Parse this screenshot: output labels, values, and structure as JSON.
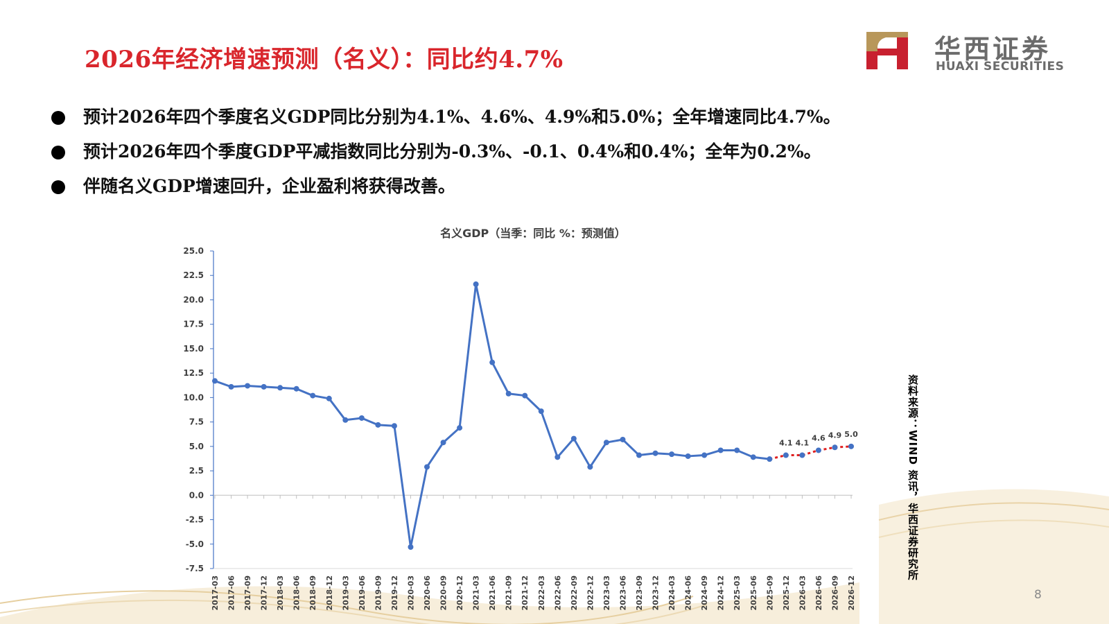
{
  "slide": {
    "title": "2026年经济增速预测（名义）：同比约4.7%",
    "page_number": "8",
    "source": "资料来源：WIND 资讯，华西证券研究所"
  },
  "logo": {
    "cn": "华西证券",
    "en": "HUAXI SECURITIES",
    "colors": {
      "red": "#c8202f",
      "gold": "#b8975a"
    }
  },
  "bullets": [
    "预计2026年四个季度名义GDP同比分别为4.1%、4.6%、4.9%和5.0%；全年增速同比4.7%。",
    "预计2026年四个季度GDP平减指数同比分别为-0.3%、-0.1、0.4%和0.4%；全年为0.2%。",
    "伴随名义GDP增速回升，企业盈利将获得改善。"
  ],
  "colors": {
    "title": "#d9262c",
    "series": "#4472c4",
    "forecast": "#e02020"
  },
  "chart_data": {
    "type": "line",
    "title": "名义GDP（当季：同比 %：预测值）",
    "xlabel": "",
    "ylabel": "",
    "ylim": [
      -7.5,
      25
    ],
    "yticks": [
      "25.0",
      "22.5",
      "20.0",
      "17.5",
      "15.0",
      "12.5",
      "10.0",
      "7.5",
      "5.0",
      "2.5",
      "0.0",
      "-2.5",
      "-5.0",
      "-7.5"
    ],
    "grid": false,
    "legend": "none",
    "categories": [
      "2017-03",
      "2017-06",
      "2017-09",
      "2017-12",
      "2018-03",
      "2018-06",
      "2018-09",
      "2018-12",
      "2019-03",
      "2019-06",
      "2019-09",
      "2019-12",
      "2020-03",
      "2020-06",
      "2020-09",
      "2020-12",
      "2021-03",
      "2021-06",
      "2021-09",
      "2021-12",
      "2022-03",
      "2022-06",
      "2022-09",
      "2022-12",
      "2023-03",
      "2023-06",
      "2023-09",
      "2023-12",
      "2024-03",
      "2024-06",
      "2024-09",
      "2024-12",
      "2025-03",
      "2025-06",
      "2025-09",
      "2025-12",
      "2026-03",
      "2026-06",
      "2026-09",
      "2026-12"
    ],
    "values": [
      11.7,
      11.1,
      11.2,
      11.1,
      11.0,
      10.9,
      10.2,
      9.9,
      7.7,
      7.9,
      7.2,
      7.1,
      -5.3,
      2.9,
      5.4,
      6.9,
      21.6,
      13.6,
      10.4,
      10.2,
      8.6,
      3.9,
      5.8,
      2.9,
      5.4,
      5.7,
      4.1,
      4.3,
      4.2,
      4.0,
      4.1,
      4.6,
      4.6,
      3.9,
      3.7,
      4.1,
      4.1,
      4.6,
      4.9,
      5.0
    ],
    "forecast_start_index": 34,
    "data_labels": [
      {
        "index": 35,
        "label": "4.1"
      },
      {
        "index": 36,
        "label": "4.1"
      },
      {
        "index": 37,
        "label": "4.6"
      },
      {
        "index": 38,
        "label": "4.9"
      },
      {
        "index": 39,
        "label": "5.0"
      }
    ]
  }
}
